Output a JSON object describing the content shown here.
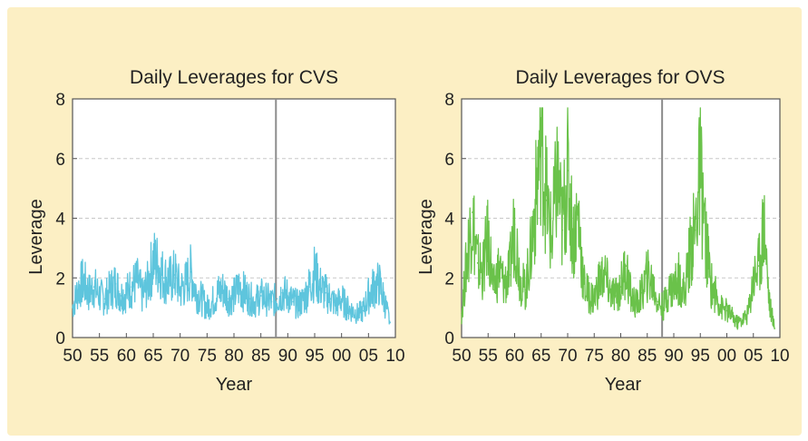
{
  "chart_data": [
    {
      "type": "line",
      "title": "Daily Leverages for CVS",
      "xlabel": "Year",
      "ylabel": "Leverage",
      "ylim": [
        0,
        8
      ],
      "yticks": [
        "0",
        "2",
        "4",
        "6",
        "8"
      ],
      "xlim": [
        1950,
        2010
      ],
      "xticks": [
        "50",
        "55",
        "60",
        "65",
        "70",
        "75",
        "80",
        "85",
        "90",
        "95",
        "00",
        "05",
        "10"
      ],
      "grid": "dashed horizontal",
      "vertical_line_year": 1987.8,
      "color": "#5ec5dd",
      "series": [
        {
          "x": [
            1950,
            1951,
            1952,
            1953,
            1954,
            1955,
            1956,
            1957,
            1958,
            1959,
            1960,
            1961,
            1962,
            1963,
            1964,
            1965,
            1966,
            1967,
            1968,
            1969,
            1970,
            1971,
            1972,
            1973,
            1974,
            1975,
            1976,
            1977,
            1978,
            1979,
            1980,
            1981,
            1982,
            1983,
            1984,
            1985,
            1986,
            1987,
            1988,
            1989,
            1990,
            1991,
            1992,
            1993,
            1994,
            1995,
            1996,
            1997,
            1998,
            1999,
            2000,
            2001,
            2002,
            2003,
            2004,
            2005,
            2006,
            2007,
            2008,
            2009
          ],
          "y": [
            1.0,
            1.6,
            1.9,
            1.5,
            1.7,
            1.4,
            1.3,
            1.6,
            1.8,
            1.4,
            1.5,
            1.7,
            1.9,
            1.4,
            1.8,
            2.6,
            2.4,
            2.0,
            1.9,
            2.1,
            1.6,
            1.8,
            2.2,
            1.5,
            1.3,
            1.0,
            1.2,
            1.5,
            1.6,
            1.3,
            1.4,
            1.7,
            1.5,
            1.3,
            1.2,
            1.4,
            1.3,
            1.2,
            1.3,
            1.5,
            1.4,
            1.2,
            1.1,
            1.3,
            1.7,
            2.2,
            1.7,
            1.5,
            1.3,
            1.1,
            1.3,
            1.0,
            0.9,
            0.8,
            0.9,
            1.4,
            1.7,
            1.8,
            1.2,
            0.5
          ]
        }
      ]
    },
    {
      "type": "line",
      "title": "Daily Leverages for OVS",
      "xlabel": "Year",
      "ylabel": "Leverage",
      "ylim": [
        0,
        8
      ],
      "yticks": [
        "0",
        "2",
        "4",
        "6",
        "8"
      ],
      "xlim": [
        1950,
        2010
      ],
      "xticks": [
        "50",
        "55",
        "60",
        "65",
        "70",
        "75",
        "80",
        "85",
        "90",
        "95",
        "00",
        "05",
        "10"
      ],
      "grid": "dashed horizontal",
      "vertical_line_year": 1987.8,
      "color": "#6ac24a",
      "series": [
        {
          "x": [
            1950,
            1951,
            1952,
            1953,
            1954,
            1955,
            1956,
            1957,
            1958,
            1959,
            1960,
            1961,
            1962,
            1963,
            1964,
            1965,
            1966,
            1967,
            1968,
            1969,
            1970,
            1971,
            1972,
            1973,
            1974,
            1975,
            1976,
            1977,
            1978,
            1979,
            1980,
            1981,
            1982,
            1983,
            1984,
            1985,
            1986,
            1987,
            1988,
            1989,
            1990,
            1991,
            1992,
            1993,
            1994,
            1995,
            1996,
            1997,
            1998,
            1999,
            2000,
            2001,
            2002,
            2003,
            2004,
            2005,
            2006,
            2007,
            2008,
            2009
          ],
          "y": [
            0.8,
            2.6,
            4.2,
            2.5,
            2.2,
            3.4,
            1.6,
            2.3,
            1.8,
            2.1,
            3.8,
            2.0,
            1.6,
            2.8,
            4.6,
            7.0,
            4.6,
            3.2,
            5.4,
            3.6,
            5.6,
            3.3,
            4.1,
            1.8,
            1.4,
            1.3,
            1.9,
            2.1,
            1.5,
            1.4,
            1.7,
            2.4,
            1.3,
            1.1,
            1.5,
            2.1,
            1.8,
            1.2,
            1.0,
            1.6,
            1.7,
            2.0,
            1.5,
            2.8,
            3.6,
            5.6,
            3.3,
            1.8,
            1.4,
            1.0,
            0.9,
            0.7,
            0.5,
            0.6,
            0.8,
            2.0,
            2.4,
            3.9,
            1.2,
            0.3
          ]
        }
      ]
    }
  ]
}
